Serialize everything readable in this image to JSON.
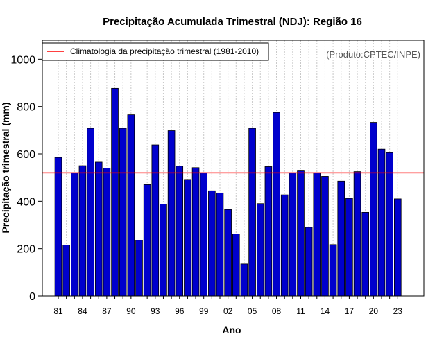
{
  "chart_data": {
    "type": "bar",
    "title": "Precipitação Acumulada Trimestral (NDJ): Região 16",
    "xlabel": "Ano",
    "ylabel": "Precipitação trimestral (mm)",
    "ylim": [
      0,
      1080
    ],
    "yticks": [
      0,
      200,
      400,
      600,
      800,
      1000
    ],
    "grid": "vertical dotted",
    "source_note": "(Produto:CPTEC/INPE)",
    "legend": {
      "position": "top-left",
      "entries": [
        {
          "label": "Climatologia da precipitação trimestral (1981-2010)",
          "color": "#ff0000"
        }
      ]
    },
    "climatology": 520,
    "categories": [
      "81",
      "82",
      "83",
      "84",
      "85",
      "86",
      "87",
      "88",
      "89",
      "90",
      "91",
      "92",
      "93",
      "94",
      "95",
      "96",
      "97",
      "98",
      "99",
      "00",
      "01",
      "02",
      "03",
      "04",
      "05",
      "06",
      "07",
      "08",
      "09",
      "10",
      "11",
      "12",
      "13",
      "14",
      "15",
      "16",
      "17",
      "18",
      "19",
      "20",
      "21",
      "22",
      "23"
    ],
    "tick_labels": [
      "81",
      "84",
      "87",
      "90",
      "93",
      "96",
      "99",
      "02",
      "05",
      "08",
      "11",
      "14",
      "17",
      "20",
      "23"
    ],
    "values": [
      585,
      215,
      520,
      550,
      708,
      565,
      540,
      877,
      708,
      765,
      235,
      470,
      638,
      388,
      698,
      548,
      492,
      542,
      520,
      444,
      435,
      365,
      262,
      135,
      708,
      390,
      546,
      775,
      427,
      520,
      528,
      290,
      520,
      505,
      217,
      485,
      412,
      525,
      353,
      733,
      620,
      605,
      410
    ],
    "bar_color": "#0000cd"
  }
}
